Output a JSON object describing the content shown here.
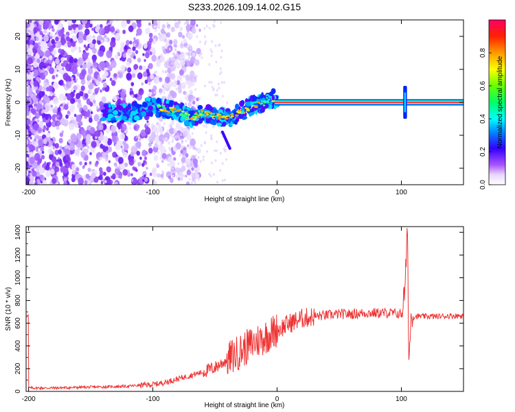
{
  "title": "S233.2026.109.14.02.G15",
  "chart_data": [
    {
      "type": "heatmap",
      "xlabel": "Height of straight line (km)",
      "ylabel": "Frequency (Hz)",
      "xlim": [
        -202,
        150
      ],
      "ylim": [
        -25,
        25
      ],
      "xticks": [
        -200,
        -100,
        0,
        100
      ],
      "yticks": [
        -20,
        -10,
        0,
        10,
        20
      ],
      "ridge": [
        {
          "x": -140,
          "y": -3
        },
        {
          "x": -120,
          "y": -3.5
        },
        {
          "x": -100,
          "y": -1
        },
        {
          "x": -90,
          "y": -2
        },
        {
          "x": -80,
          "y": -2.5
        },
        {
          "x": -70,
          "y": -5
        },
        {
          "x": -60,
          "y": -3
        },
        {
          "x": -50,
          "y": -4
        },
        {
          "x": -40,
          "y": -5
        },
        {
          "x": -30,
          "y": -3
        },
        {
          "x": -20,
          "y": -1
        },
        {
          "x": -10,
          "y": 0
        },
        {
          "x": -5,
          "y": 1.5
        },
        {
          "x": 0,
          "y": 0
        },
        {
          "x": 50,
          "y": 0
        },
        {
          "x": 100,
          "y": 0
        },
        {
          "x": 150,
          "y": 0
        }
      ],
      "colorbar": {
        "label": "Normalized spectral amplitude",
        "ticks": [
          0.0,
          0.2,
          0.4,
          0.6,
          0.8
        ],
        "tick_labels": [
          "0.0",
          "0.2",
          "0.4",
          "0.6",
          "0.8"
        ],
        "range": [
          0,
          1
        ]
      }
    },
    {
      "type": "line",
      "xlabel": "Height of straight line (km)",
      "ylabel": "SNR (10 * v/v)",
      "xlim": [
        -202,
        150
      ],
      "ylim": [
        0,
        1450
      ],
      "xticks": [
        -200,
        -100,
        0,
        100
      ],
      "yticks": [
        0,
        200,
        400,
        600,
        800,
        1000,
        1200,
        1400
      ],
      "series": [
        {
          "color": "#ee3333",
          "points": [
            [
              -200,
              30
            ],
            [
              -180,
              30
            ],
            [
              -160,
              35
            ],
            [
              -140,
              40
            ],
            [
              -120,
              45
            ],
            [
              -110,
              55
            ],
            [
              -100,
              60
            ],
            [
              -90,
              80
            ],
            [
              -80,
              110
            ],
            [
              -70,
              140
            ],
            [
              -60,
              170
            ],
            [
              -50,
              210
            ],
            [
              -40,
              280
            ],
            [
              -30,
              350
            ],
            [
              -20,
              420
            ],
            [
              -10,
              480
            ],
            [
              0,
              540
            ],
            [
              10,
              600
            ],
            [
              20,
              640
            ],
            [
              30,
              660
            ],
            [
              40,
              670
            ],
            [
              50,
              680
            ],
            [
              60,
              680
            ],
            [
              70,
              690
            ],
            [
              80,
              690
            ],
            [
              90,
              690
            ],
            [
              100,
              680
            ],
            [
              103,
              900
            ],
            [
              105,
              1450
            ],
            [
              106,
              250
            ],
            [
              108,
              700
            ],
            [
              110,
              660
            ],
            [
              120,
              660
            ],
            [
              130,
              660
            ],
            [
              140,
              665
            ],
            [
              150,
              665
            ]
          ]
        }
      ]
    }
  ]
}
